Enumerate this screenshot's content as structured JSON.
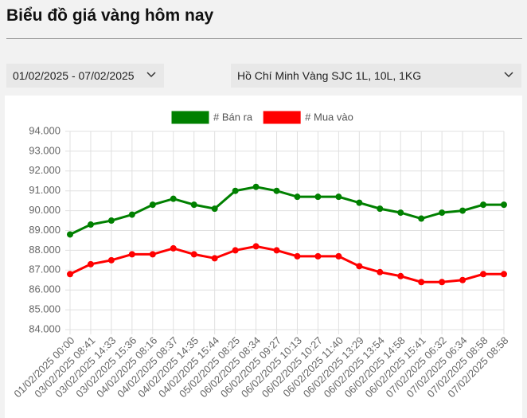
{
  "header": {
    "title": "Biểu đồ giá vàng hôm nay"
  },
  "filters": {
    "date_range": "01/02/2025 - 07/02/2025",
    "product": "Hồ Chí Minh Vàng SJC 1L, 10L, 1KG"
  },
  "chart_data": {
    "type": "line",
    "categories": [
      "01/02/2025 00:00",
      "03/02/2025 08:41",
      "03/02/2025 14:33",
      "03/02/2025 15:36",
      "04/02/2025 08:16",
      "04/02/2025 08:37",
      "04/02/2025 14:35",
      "04/02/2025 15:44",
      "05/02/2025 08:25",
      "06/02/2025 08:34",
      "06/02/2025 09:27",
      "06/02/2025 10:13",
      "06/02/2025 10:27",
      "06/02/2025 11:40",
      "06/02/2025 13:29",
      "06/02/2025 13:54",
      "06/02/2025 14:58",
      "06/02/2025 15:41",
      "07/02/2025 06:32",
      "07/02/2025 06:34",
      "07/02/2025 08:58",
      "07/02/2025 08:58"
    ],
    "series": [
      {
        "name": "# Bán ra",
        "color": "#008000",
        "values": [
          88800,
          89300,
          89500,
          89800,
          90300,
          90600,
          90300,
          90100,
          91000,
          91200,
          91000,
          90700,
          90700,
          90700,
          90400,
          90100,
          89900,
          89600,
          89900,
          90000,
          90300,
          90300
        ]
      },
      {
        "name": "# Mua vào",
        "color": "#ff0000",
        "values": [
          86800,
          87300,
          87500,
          87800,
          87800,
          88100,
          87800,
          87600,
          88000,
          88200,
          88000,
          87700,
          87700,
          87700,
          87200,
          86900,
          86700,
          86400,
          86400,
          86500,
          86800,
          86800
        ]
      }
    ],
    "ylim": [
      84000,
      94000
    ],
    "yticks": [
      {
        "value": 84000,
        "label": "84.000"
      },
      {
        "value": 85000,
        "label": "85.000"
      },
      {
        "value": 86000,
        "label": "86.000"
      },
      {
        "value": 87000,
        "label": "87.000"
      },
      {
        "value": 88000,
        "label": "88.000"
      },
      {
        "value": 89000,
        "label": "89.000"
      },
      {
        "value": 90000,
        "label": "90.000"
      },
      {
        "value": 91000,
        "label": "91.000"
      },
      {
        "value": 92000,
        "label": "92.000"
      },
      {
        "value": 93000,
        "label": "93.000"
      },
      {
        "value": 94000,
        "label": "94.000"
      }
    ],
    "grid": true,
    "legend": "top"
  }
}
